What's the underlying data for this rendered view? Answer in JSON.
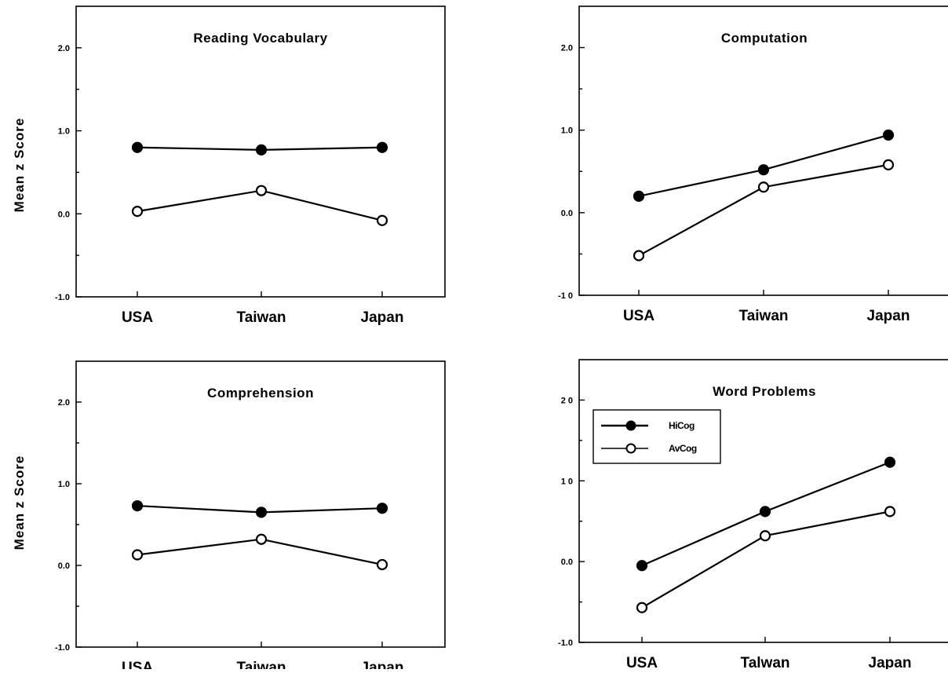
{
  "chart_data": [
    {
      "type": "line",
      "title": "Reading  Vocabulary",
      "ylabel": "Mean  z  Score",
      "xlabel": "",
      "categories": [
        "USA",
        "Taiwan",
        "Japan"
      ],
      "ylim": [
        -1.0,
        2.5
      ],
      "yticks": [
        "-1.0",
        "0.0",
        "1.0",
        "2.0"
      ],
      "series": [
        {
          "name": "HiCog",
          "marker": "filled",
          "values": [
            0.8,
            0.77,
            0.8
          ]
        },
        {
          "name": "AvCog",
          "marker": "open",
          "values": [
            0.03,
            0.28,
            -0.08
          ]
        }
      ]
    },
    {
      "type": "line",
      "title": "Computation",
      "ylabel": "",
      "xlabel": "",
      "categories": [
        "USA",
        "Taiwan",
        "Japan"
      ],
      "ylim": [
        -1.0,
        2.5
      ],
      "yticks": [
        "-1 0",
        "0.0",
        "1.0",
        "2.0"
      ],
      "series": [
        {
          "name": "HiCog",
          "marker": "filled",
          "values": [
            0.2,
            0.52,
            0.94
          ]
        },
        {
          "name": "AvCog",
          "marker": "open",
          "values": [
            -0.52,
            0.31,
            0.58
          ]
        }
      ]
    },
    {
      "type": "line",
      "title": "Comprehension",
      "ylabel": "Mean  z  Score",
      "xlabel": "",
      "categories": [
        "USA",
        "Taiwan",
        "Japan"
      ],
      "ylim": [
        -1.0,
        2.5
      ],
      "yticks": [
        "-1.0",
        "0.0",
        "1.0",
        "2.0"
      ],
      "series": [
        {
          "name": "HiCog",
          "marker": "filled",
          "values": [
            0.73,
            0.65,
            0.7
          ]
        },
        {
          "name": "AvCog",
          "marker": "open",
          "values": [
            0.13,
            0.32,
            0.01
          ]
        }
      ]
    },
    {
      "type": "line",
      "title": "Word  Problems",
      "ylabel": "",
      "xlabel": "",
      "categories": [
        "USA",
        "Talwan",
        "Japan"
      ],
      "ylim": [
        -1.0,
        2.5
      ],
      "yticks": [
        "-1.0",
        "0.0",
        "1 0",
        "2 0"
      ],
      "legend": {
        "placement": "top-left",
        "entries": [
          "HiCog",
          "AvCog"
        ]
      },
      "series": [
        {
          "name": "HiCog",
          "marker": "filled",
          "values": [
            -0.05,
            0.62,
            1.23
          ]
        },
        {
          "name": "AvCog",
          "marker": "open",
          "values": [
            -0.57,
            0.32,
            0.62
          ]
        }
      ]
    }
  ]
}
